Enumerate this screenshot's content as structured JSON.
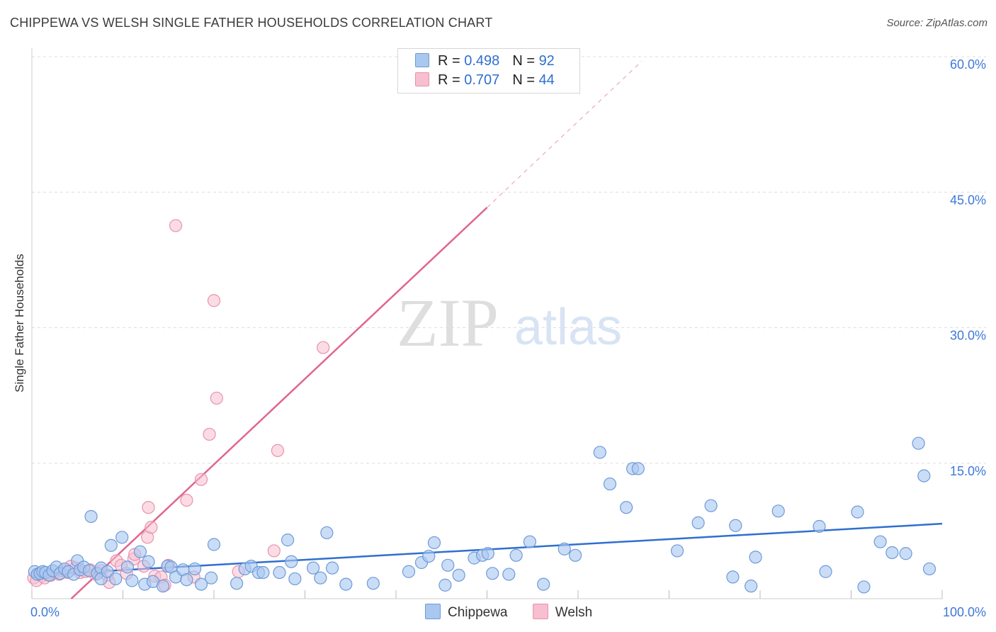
{
  "title": "CHIPPEWA VS WELSH SINGLE FATHER HOUSEHOLDS CORRELATION CHART",
  "source": "Source: ZipAtlas.com",
  "watermark": {
    "zip": "ZIP",
    "atlas": "atlas"
  },
  "legend_top": [
    {
      "r_label": "R =",
      "r_value": "0.498",
      "n_label": "N =",
      "n_value": "92"
    },
    {
      "r_label": "R =",
      "r_value": "0.707",
      "n_label": "N =",
      "n_value": "44"
    }
  ],
  "legend_bottom": [
    "Chippewa",
    "Welsh"
  ],
  "colors": {
    "chippewa_fill": "#a9c8f0",
    "chippewa_stroke": "#6e9ad8",
    "chippewa_line": "#2f6fd0",
    "welsh_fill": "#f7bfd0",
    "welsh_stroke": "#e892ad",
    "welsh_line": "#e0668e",
    "tick_text": "#3d78d8",
    "grid": "#dddddd"
  },
  "chart_data": {
    "type": "scatter",
    "title": "CHIPPEWA VS WELSH SINGLE FATHER HOUSEHOLDS CORRELATION CHART",
    "xlabel": "",
    "ylabel": "Single Father Households",
    "xlim": [
      0,
      100
    ],
    "ylim": [
      0,
      60
    ],
    "x_tick_labels": [
      "0.0%",
      "100.0%"
    ],
    "y_ticks": [
      15,
      30,
      45,
      60
    ],
    "y_tick_labels": [
      "15.0%",
      "30.0%",
      "45.0%",
      "60.0%"
    ],
    "series": [
      {
        "name": "Chippewa",
        "r": 0.498,
        "n": 92,
        "trend": {
          "x0": 0,
          "y0": 2.6,
          "x1": 100,
          "y1": 8.3
        },
        "points": [
          [
            0.3,
            3.0
          ],
          [
            0.6,
            2.7
          ],
          [
            0.9,
            2.8
          ],
          [
            1.2,
            3.0
          ],
          [
            1.5,
            2.9
          ],
          [
            1.9,
            2.6
          ],
          [
            2.3,
            3.1
          ],
          [
            2.7,
            3.5
          ],
          [
            3.1,
            2.8
          ],
          [
            3.6,
            3.3
          ],
          [
            4.0,
            3.0
          ],
          [
            4.6,
            2.7
          ],
          [
            5.0,
            4.2
          ],
          [
            5.3,
            3.2
          ],
          [
            5.7,
            3.5
          ],
          [
            6.3,
            3.1
          ],
          [
            6.5,
            9.1
          ],
          [
            7.2,
            2.8
          ],
          [
            7.6,
            3.4
          ],
          [
            7.6,
            2.2
          ],
          [
            8.3,
            3.0
          ],
          [
            8.7,
            5.9
          ],
          [
            9.2,
            2.2
          ],
          [
            9.9,
            6.8
          ],
          [
            10.5,
            3.5
          ],
          [
            11.0,
            2.0
          ],
          [
            11.9,
            5.2
          ],
          [
            12.4,
            1.6
          ],
          [
            12.8,
            4.1
          ],
          [
            13.3,
            1.9
          ],
          [
            14.4,
            1.4
          ],
          [
            14.9,
            3.6
          ],
          [
            15.3,
            3.5
          ],
          [
            15.8,
            2.4
          ],
          [
            16.6,
            3.2
          ],
          [
            17.0,
            2.1
          ],
          [
            17.9,
            3.3
          ],
          [
            18.6,
            1.6
          ],
          [
            19.7,
            2.3
          ],
          [
            20.0,
            6.0
          ],
          [
            22.5,
            1.7
          ],
          [
            23.4,
            3.3
          ],
          [
            24.1,
            3.6
          ],
          [
            24.9,
            2.9
          ],
          [
            25.4,
            2.9
          ],
          [
            27.2,
            2.9
          ],
          [
            28.1,
            6.5
          ],
          [
            28.5,
            4.1
          ],
          [
            28.9,
            2.2
          ],
          [
            30.9,
            3.4
          ],
          [
            31.7,
            2.3
          ],
          [
            32.4,
            7.3
          ],
          [
            33.0,
            3.4
          ],
          [
            34.5,
            1.6
          ],
          [
            37.5,
            1.7
          ],
          [
            41.4,
            3.0
          ],
          [
            42.8,
            4.0
          ],
          [
            43.6,
            4.7
          ],
          [
            44.2,
            6.2
          ],
          [
            45.4,
            1.5
          ],
          [
            45.7,
            3.7
          ],
          [
            46.9,
            2.6
          ],
          [
            48.6,
            4.5
          ],
          [
            49.5,
            4.8
          ],
          [
            50.1,
            5.0
          ],
          [
            50.6,
            2.8
          ],
          [
            52.4,
            2.7
          ],
          [
            53.2,
            4.8
          ],
          [
            54.7,
            6.3
          ],
          [
            56.2,
            1.6
          ],
          [
            58.5,
            5.5
          ],
          [
            59.7,
            4.8
          ],
          [
            62.4,
            16.2
          ],
          [
            63.5,
            12.7
          ],
          [
            65.3,
            10.1
          ],
          [
            66.0,
            14.4
          ],
          [
            66.6,
            14.4
          ],
          [
            70.9,
            5.3
          ],
          [
            73.2,
            8.4
          ],
          [
            74.6,
            10.3
          ],
          [
            77.0,
            2.4
          ],
          [
            77.3,
            8.1
          ],
          [
            79.0,
            1.4
          ],
          [
            79.5,
            4.6
          ],
          [
            82.0,
            9.7
          ],
          [
            86.5,
            8.0
          ],
          [
            87.2,
            3.0
          ],
          [
            90.7,
            9.6
          ],
          [
            91.4,
            1.3
          ],
          [
            93.2,
            6.3
          ],
          [
            94.5,
            5.1
          ],
          [
            96.0,
            5.0
          ],
          [
            97.4,
            17.2
          ],
          [
            98.0,
            13.6
          ],
          [
            98.6,
            3.3
          ]
        ]
      },
      {
        "name": "Welsh",
        "r": 0.707,
        "n": 44,
        "trend": {
          "x0": 0,
          "y0": -4.1,
          "x1": 50,
          "y1": 43.3
        },
        "trend_extension": {
          "x0": 50,
          "y0": 43.3,
          "x1": 67,
          "y1": 59.5
        },
        "points": [
          [
            0.2,
            2.3
          ],
          [
            0.5,
            2.0
          ],
          [
            0.8,
            2.8
          ],
          [
            1.1,
            2.5
          ],
          [
            1.4,
            2.3
          ],
          [
            1.7,
            2.7
          ],
          [
            2.1,
            2.6
          ],
          [
            2.5,
            2.9
          ],
          [
            3.0,
            2.7
          ],
          [
            3.4,
            3.1
          ],
          [
            3.9,
            2.9
          ],
          [
            4.3,
            3.6
          ],
          [
            4.8,
            3.4
          ],
          [
            5.3,
            2.9
          ],
          [
            5.9,
            3.0
          ],
          [
            6.4,
            3.2
          ],
          [
            7.0,
            2.7
          ],
          [
            7.6,
            3.1
          ],
          [
            8.3,
            2.6
          ],
          [
            8.5,
            1.8
          ],
          [
            9.3,
            4.2
          ],
          [
            9.8,
            3.7
          ],
          [
            10.4,
            2.8
          ],
          [
            11.2,
            4.4
          ],
          [
            11.3,
            4.9
          ],
          [
            12.3,
            3.6
          ],
          [
            12.7,
            6.8
          ],
          [
            12.8,
            10.1
          ],
          [
            13.1,
            7.9
          ],
          [
            13.5,
            2.5
          ],
          [
            14.2,
            2.4
          ],
          [
            14.6,
            1.5
          ],
          [
            15.0,
            3.7
          ],
          [
            15.8,
            41.3
          ],
          [
            17.0,
            10.9
          ],
          [
            17.8,
            2.4
          ],
          [
            18.6,
            13.2
          ],
          [
            19.5,
            18.2
          ],
          [
            20.0,
            33.0
          ],
          [
            20.3,
            22.2
          ],
          [
            22.7,
            3.0
          ],
          [
            26.6,
            5.3
          ],
          [
            27.0,
            16.4
          ],
          [
            32.0,
            27.8
          ]
        ]
      }
    ]
  }
}
